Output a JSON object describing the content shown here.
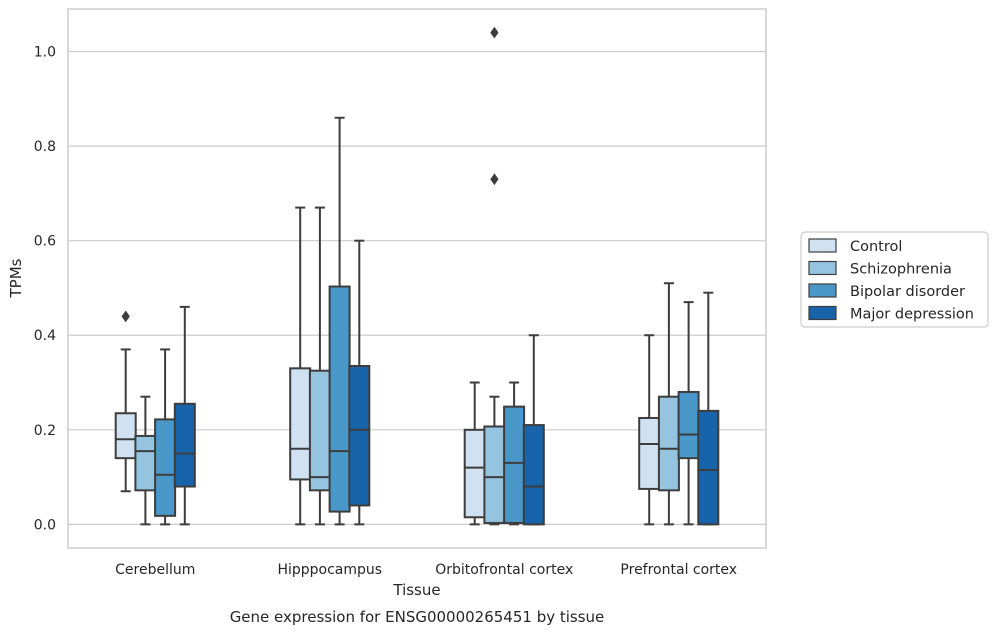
{
  "caption": "Gene expression for ENSG00000265451 by tissue",
  "chart_data": {
    "type": "box",
    "xlabel": "Tissue",
    "ylabel": "TPMs",
    "ylim": [
      -0.05,
      1.09
    ],
    "yticks": [
      "0.0",
      "0.2",
      "0.4",
      "0.6",
      "0.8",
      "1.0"
    ],
    "grid": "horizontal",
    "legend_position": "right",
    "categories": [
      "Cerebellum",
      "Hipppocampus",
      "Orbitofrontal cortex",
      "Prefrontal cortex"
    ],
    "series": [
      {
        "name": "Control",
        "color": "#d0e1f2",
        "boxes": [
          {
            "whislo": 0.07,
            "q1": 0.14,
            "med": 0.18,
            "q3": 0.235,
            "whishi": 0.37,
            "fliers": [
              0.44
            ]
          },
          {
            "whislo": 0.0,
            "q1": 0.095,
            "med": 0.16,
            "q3": 0.33,
            "whishi": 0.67,
            "fliers": []
          },
          {
            "whislo": 0.0,
            "q1": 0.015,
            "med": 0.12,
            "q3": 0.2,
            "whishi": 0.3,
            "fliers": []
          },
          {
            "whislo": 0.0,
            "q1": 0.075,
            "med": 0.17,
            "q3": 0.225,
            "whishi": 0.4,
            "fliers": []
          }
        ]
      },
      {
        "name": "Schizophrenia",
        "color": "#94c4df",
        "boxes": [
          {
            "whislo": 0.0,
            "q1": 0.072,
            "med": 0.155,
            "q3": 0.187,
            "whishi": 0.27,
            "fliers": []
          },
          {
            "whislo": 0.0,
            "q1": 0.072,
            "med": 0.1,
            "q3": 0.325,
            "whishi": 0.67,
            "fliers": []
          },
          {
            "whislo": 0.0,
            "q1": 0.003,
            "med": 0.1,
            "q3": 0.207,
            "whishi": 0.27,
            "fliers": [
              0.73,
              1.04
            ]
          },
          {
            "whislo": 0.0,
            "q1": 0.072,
            "med": 0.16,
            "q3": 0.27,
            "whishi": 0.51,
            "fliers": []
          }
        ]
      },
      {
        "name": "Bipolar disorder",
        "color": "#4a98c9",
        "boxes": [
          {
            "whislo": 0.0,
            "q1": 0.018,
            "med": 0.105,
            "q3": 0.222,
            "whishi": 0.37,
            "fliers": []
          },
          {
            "whislo": 0.0,
            "q1": 0.027,
            "med": 0.155,
            "q3": 0.503,
            "whishi": 0.86,
            "fliers": []
          },
          {
            "whislo": 0.0,
            "q1": 0.003,
            "med": 0.13,
            "q3": 0.249,
            "whishi": 0.3,
            "fliers": []
          },
          {
            "whislo": 0.0,
            "q1": 0.14,
            "med": 0.19,
            "q3": 0.28,
            "whishi": 0.47,
            "fliers": []
          }
        ]
      },
      {
        "name": "Major depression",
        "color": "#1764ab",
        "boxes": [
          {
            "whislo": 0.0,
            "q1": 0.08,
            "med": 0.15,
            "q3": 0.255,
            "whishi": 0.46,
            "fliers": []
          },
          {
            "whislo": 0.0,
            "q1": 0.04,
            "med": 0.2,
            "q3": 0.335,
            "whishi": 0.6,
            "fliers": []
          },
          {
            "whislo": 0.0,
            "q1": 0.0,
            "med": 0.08,
            "q3": 0.21,
            "whishi": 0.4,
            "fliers": []
          },
          {
            "whislo": 0.0,
            "q1": 0.0,
            "med": 0.115,
            "q3": 0.24,
            "whishi": 0.49,
            "fliers": []
          }
        ]
      }
    ]
  }
}
